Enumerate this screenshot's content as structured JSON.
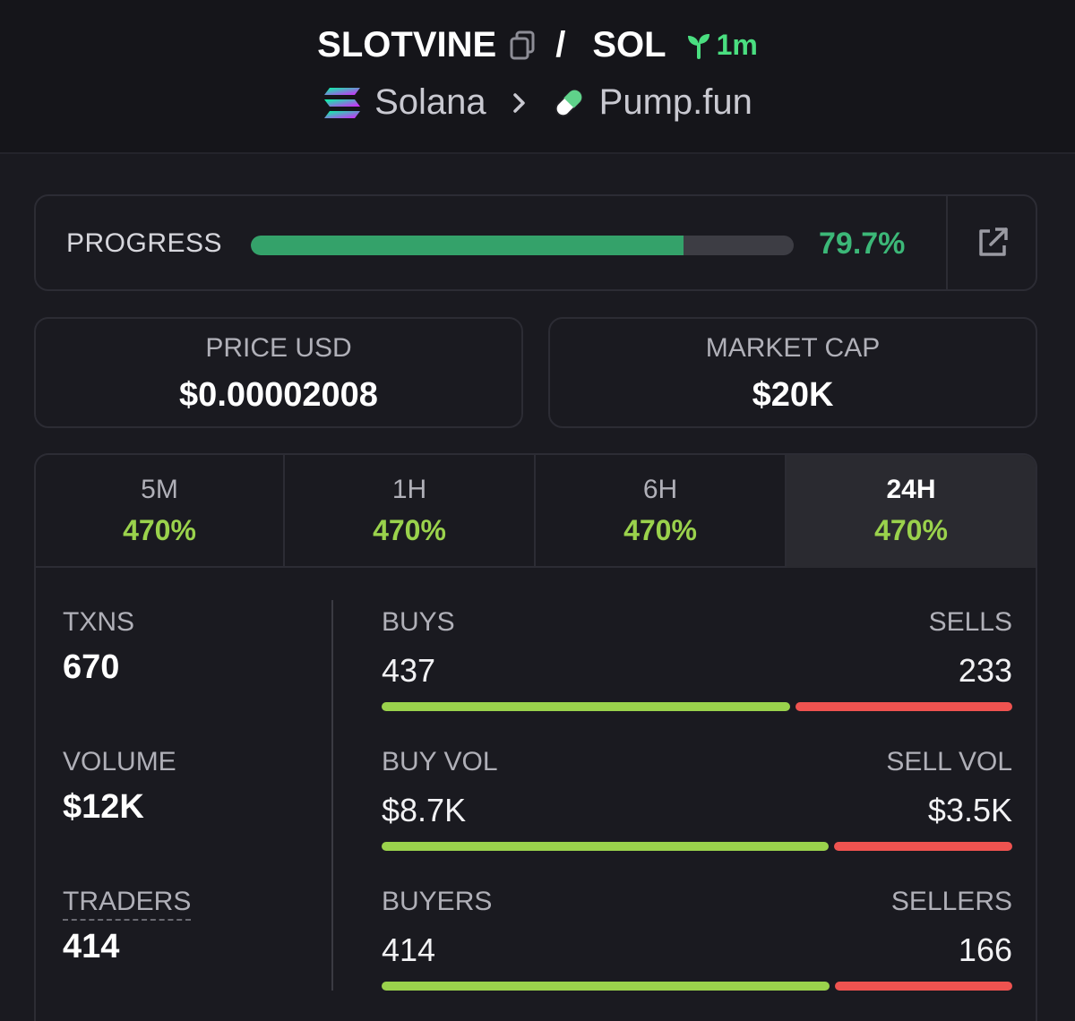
{
  "header": {
    "token": "SLOTVINE",
    "quote": "SOL",
    "separator": "/",
    "age": "1m",
    "chain": "Solana",
    "dex": "Pump.fun"
  },
  "progress": {
    "label": "PROGRESS",
    "value_text": "79.7%",
    "fraction": 0.797
  },
  "price": {
    "label": "PRICE USD",
    "value": "$0.00002008"
  },
  "market_cap": {
    "label": "MARKET CAP",
    "value": "$20K"
  },
  "tabs": [
    {
      "label": "5M",
      "change": "470%"
    },
    {
      "label": "1H",
      "change": "470%"
    },
    {
      "label": "6H",
      "change": "470%"
    },
    {
      "label": "24H",
      "change": "470%",
      "active": true
    }
  ],
  "metrics": {
    "txns": {
      "label": "TXNS",
      "value": "670"
    },
    "volume": {
      "label": "VOLUME",
      "value": "$12K"
    },
    "traders": {
      "label": "TRADERS",
      "value": "414"
    }
  },
  "splits": {
    "txns": {
      "left_label": "BUYS",
      "right_label": "SELLS",
      "left_value": "437",
      "right_value": "233",
      "left_fraction": 0.652
    },
    "volume": {
      "left_label": "BUY VOL",
      "right_label": "SELL VOL",
      "left_value": "$8.7K",
      "right_value": "$3.5K",
      "left_fraction": 0.713
    },
    "traders": {
      "left_label": "BUYERS",
      "right_label": "SELLERS",
      "left_value": "414",
      "right_value": "166",
      "left_fraction": 0.714
    }
  },
  "colors": {
    "positive": "#9ad24c",
    "negative": "#ef5350",
    "progress_fill": "#34a26a",
    "age": "#4ade80"
  }
}
